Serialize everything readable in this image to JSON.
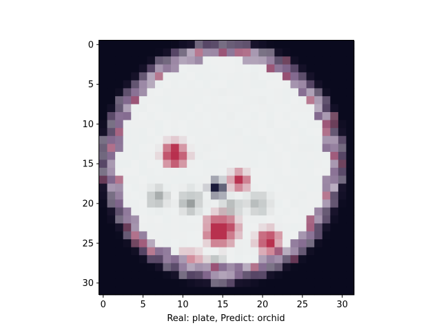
{
  "figure": {
    "xlabel": "Real: plate, Predict: orchid",
    "x_ticks": [
      "0",
      "5",
      "10",
      "15",
      "20",
      "25",
      "30"
    ],
    "y_ticks": [
      "0",
      "5",
      "10",
      "15",
      "20",
      "25",
      "30"
    ],
    "image_grid": {
      "rows": 32,
      "cols": 32
    },
    "subject": "pixelated photo of a white plate with red floral decoration and purple rim on a dark background",
    "colors": {
      "background": "#0a0a1e",
      "plate": "#eef0f0",
      "rim": "#6a4a78",
      "flower_red": "#b8304e",
      "leaf_grey": "#8a9090",
      "dark_center": "#1a1a3a"
    }
  }
}
